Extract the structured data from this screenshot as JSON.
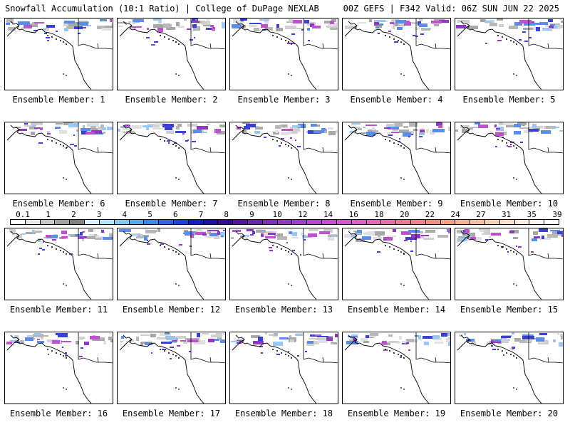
{
  "header": {
    "left": "Snowfall Accumulation (10:1 Ratio) | College of DuPage NEXLAB",
    "right": "00Z GEFS | F342 Valid: 06Z SUN JUN 22 2025"
  },
  "panels": [
    {
      "label": "Ensemble Member: 1"
    },
    {
      "label": "Ensemble Member: 2"
    },
    {
      "label": "Ensemble Member: 3"
    },
    {
      "label": "Ensemble Member: 4"
    },
    {
      "label": "Ensemble Member: 5"
    },
    {
      "label": "Ensemble Member: 6"
    },
    {
      "label": "Ensemble Member: 7"
    },
    {
      "label": "Ensemble Member: 8"
    },
    {
      "label": "Ensemble Member: 9"
    },
    {
      "label": "Ensemble Member: 10"
    },
    {
      "label": "Ensemble Member: 11"
    },
    {
      "label": "Ensemble Member: 12"
    },
    {
      "label": "Ensemble Member: 13"
    },
    {
      "label": "Ensemble Member: 14"
    },
    {
      "label": "Ensemble Member: 15"
    },
    {
      "label": "Ensemble Member: 16"
    },
    {
      "label": "Ensemble Member: 17"
    },
    {
      "label": "Ensemble Member: 18"
    },
    {
      "label": "Ensemble Member: 19"
    },
    {
      "label": "Ensemble Member: 20"
    }
  ],
  "colorbar": {
    "labels": [
      "0.1",
      "1",
      "2",
      "3",
      "4",
      "5",
      "6",
      "7",
      "8",
      "9",
      "10",
      "12",
      "14",
      "16",
      "18",
      "20",
      "22",
      "24",
      "27",
      "31",
      "35",
      "39"
    ],
    "colors": [
      "#ffffff",
      "#e8e8e8",
      "#c8c8c8",
      "#a0a0a0",
      "#808080",
      "#d8f4fc",
      "#b0e4f8",
      "#80c8f0",
      "#5aa8e8",
      "#3f88e4",
      "#2c64e0",
      "#1c44d8",
      "#1020c0",
      "#2010a0",
      "#3a0c90",
      "#501890",
      "#6828a0",
      "#7c30b0",
      "#9038c0",
      "#a040c8",
      "#b048cc",
      "#c050d0",
      "#cc58cc",
      "#d860c4",
      "#e068b8",
      "#e470a8",
      "#e87898",
      "#ec8488",
      "#f09080",
      "#f4a084",
      "#f4b090",
      "#f6c0a0",
      "#f8d0b4",
      "#fae0c8",
      "#fcece0",
      "#fef6f0",
      "#ffffff"
    ]
  }
}
